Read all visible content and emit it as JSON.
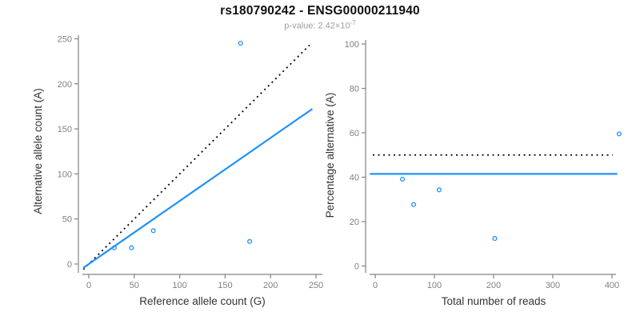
{
  "header": {
    "title": "rs180790242 - ENSG00000211940",
    "subtitle_prefix": "p-value: 2.42×10",
    "subtitle_exponent": "-7"
  },
  "colors": {
    "accent_blue": "#1E90FF",
    "dotted_black": "#000000",
    "axis_gray": "#828282",
    "tick_label_gray": "#808080",
    "axis_title_dark": "#333333",
    "subtitle_gray": "#9e9e9e",
    "background": "#ffffff"
  },
  "chart_data": [
    {
      "type": "scatter",
      "name": "allele-counts-scatter",
      "xlabel": "Reference allele count (G)",
      "ylabel": "Alternative allele count (A)",
      "xlim": [
        0,
        250
      ],
      "ylim": [
        0,
        250
      ],
      "xticks": [
        0,
        50,
        100,
        150,
        200,
        250
      ],
      "yticks": [
        0,
        50,
        100,
        150,
        200,
        250
      ],
      "grid": false,
      "legend": null,
      "marker": "open-circle",
      "points": [
        {
          "x": 28,
          "y": 18
        },
        {
          "x": 47,
          "y": 18
        },
        {
          "x": 71,
          "y": 37
        },
        {
          "x": 167,
          "y": 245
        },
        {
          "x": 177,
          "y": 25
        }
      ],
      "lines": [
        {
          "name": "identity-line",
          "style": "dotted",
          "color": "#000000",
          "slope": 1,
          "intercept": 0
        },
        {
          "name": "fit-line",
          "style": "solid",
          "color": "#1E90FF",
          "slope": 0.7,
          "intercept": 0
        }
      ]
    },
    {
      "type": "scatter",
      "name": "percentage-vs-coverage-scatter",
      "xlabel": "Total number of reads",
      "ylabel": "Percentage alternative (A)",
      "xlim": [
        0,
        412
      ],
      "ylim": [
        0,
        100
      ],
      "xticks": [
        0,
        100,
        200,
        300,
        400
      ],
      "yticks": [
        0,
        20,
        40,
        60,
        80,
        100
      ],
      "grid": false,
      "legend": null,
      "marker": "open-circle",
      "points": [
        {
          "x": 46,
          "y": 39.1
        },
        {
          "x": 65,
          "y": 27.7
        },
        {
          "x": 108,
          "y": 34.3
        },
        {
          "x": 202,
          "y": 12.4
        },
        {
          "x": 412,
          "y": 59.5
        }
      ],
      "lines": [
        {
          "name": "null-50pct-line",
          "style": "dotted",
          "color": "#000000",
          "slope": 0,
          "intercept": 50
        },
        {
          "name": "mean-pct-line",
          "style": "solid",
          "color": "#1E90FF",
          "slope": 0,
          "intercept": 41.5
        }
      ]
    }
  ]
}
